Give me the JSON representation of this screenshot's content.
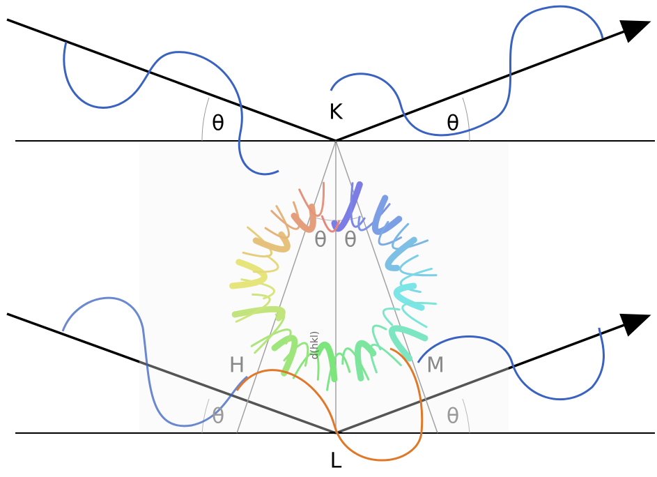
{
  "labels": [
    {
      "text": "θ"
    },
    {
      "text": "K"
    },
    {
      "text": "θ"
    },
    {
      "text": "θ"
    },
    {
      "text": "θ"
    },
    {
      "text": "d(hkl)"
    },
    {
      "text": "H"
    },
    {
      "text": "M"
    },
    {
      "text": "θ"
    },
    {
      "text": "θ"
    },
    {
      "text": "L"
    }
  ]
}
